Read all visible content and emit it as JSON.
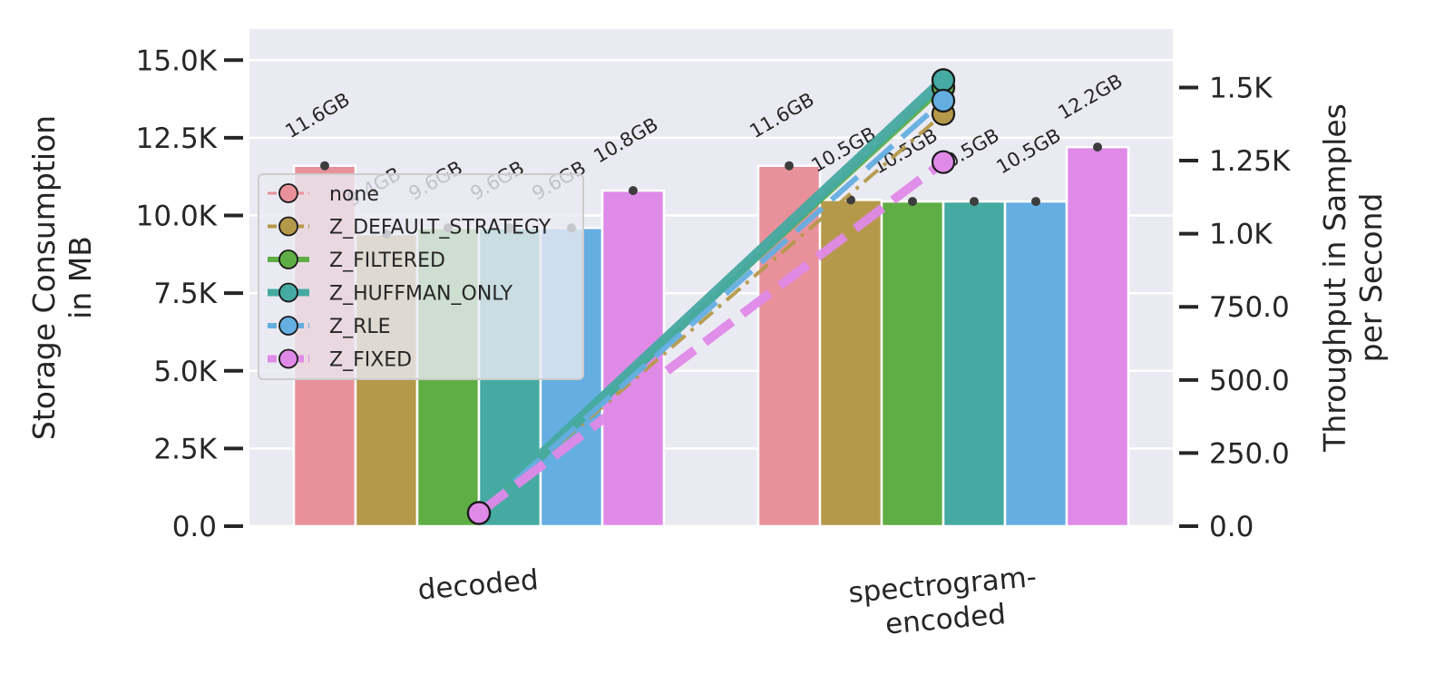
{
  "chart_data": {
    "type": "bar",
    "categories": [
      "decoded",
      "spectrogram-encoded"
    ],
    "category_lines": [
      [
        "decoded"
      ],
      [
        "spectrogram-",
        "encoded"
      ]
    ],
    "ylabel_left": [
      "Storage Consumption",
      "in MB"
    ],
    "ylabel_right": [
      "Throughput in Samples",
      "per Second"
    ],
    "ylim_left": [
      0,
      16000
    ],
    "ylim_right": [
      0,
      1700
    ],
    "yticks_left": [
      {
        "value": 0,
        "label": "0.0"
      },
      {
        "value": 2500,
        "label": "2.5K"
      },
      {
        "value": 5000,
        "label": "5.0K"
      },
      {
        "value": 7500,
        "label": "7.5K"
      },
      {
        "value": 10000,
        "label": "10.0K"
      },
      {
        "value": 12500,
        "label": "12.5K"
      },
      {
        "value": 15000,
        "label": "15.0K"
      }
    ],
    "yticks_right": [
      {
        "value": 0,
        "label": "0.0"
      },
      {
        "value": 250,
        "label": "250.0"
      },
      {
        "value": 500,
        "label": "500.0"
      },
      {
        "value": 750,
        "label": "750.0"
      },
      {
        "value": 1000,
        "label": "1.0K"
      },
      {
        "value": 1250,
        "label": "1.25K"
      },
      {
        "value": 1500,
        "label": "1.5K"
      }
    ],
    "grid": true,
    "legend_position": "upper-left",
    "series": [
      {
        "name": "none",
        "color": "#e8919b",
        "storage_mb": [
          11600,
          11600
        ],
        "storage_labels": [
          "11.6GB",
          "11.6GB"
        ],
        "throughput": [
          45,
          1525
        ],
        "line_style": "dashdot",
        "line_width": 3
      },
      {
        "name": "Z_DEFAULT_STRATEGY",
        "color": "#b5994a",
        "storage_mb": [
          9400,
          10500
        ],
        "storage_labels": [
          "9.4GB",
          "10.5GB"
        ],
        "throughput": [
          45,
          1410
        ],
        "line_style": "dashdot",
        "line_width": 4
      },
      {
        "name": "Z_FILTERED",
        "color": "#5fae45",
        "storage_mb": [
          9600,
          10450
        ],
        "storage_labels": [
          "9.6GB",
          "10.5GB"
        ],
        "throughput": [
          45,
          1500
        ],
        "line_style": "solid",
        "line_width": 6
      },
      {
        "name": "Z_HUFFMAN_ONLY",
        "color": "#45aaa2",
        "storage_mb": [
          9600,
          10450
        ],
        "storage_labels": [
          "9.6GB",
          "10.5GB"
        ],
        "throughput": [
          45,
          1525
        ],
        "line_style": "solid",
        "line_width": 12
      },
      {
        "name": "Z_RLE",
        "color": "#65aee1",
        "storage_mb": [
          9600,
          10450
        ],
        "storage_labels": [
          "9.6GB",
          "10.5GB"
        ],
        "throughput": [
          45,
          1455
        ],
        "line_style": "dash",
        "line_width": 6
      },
      {
        "name": "Z_FIXED",
        "color": "#e08ae8",
        "storage_mb": [
          10800,
          12200
        ],
        "storage_labels": [
          "10.8GB",
          "12.2GB"
        ],
        "throughput": [
          45,
          1245
        ],
        "line_style": "dash",
        "line_width": 10
      }
    ]
  }
}
